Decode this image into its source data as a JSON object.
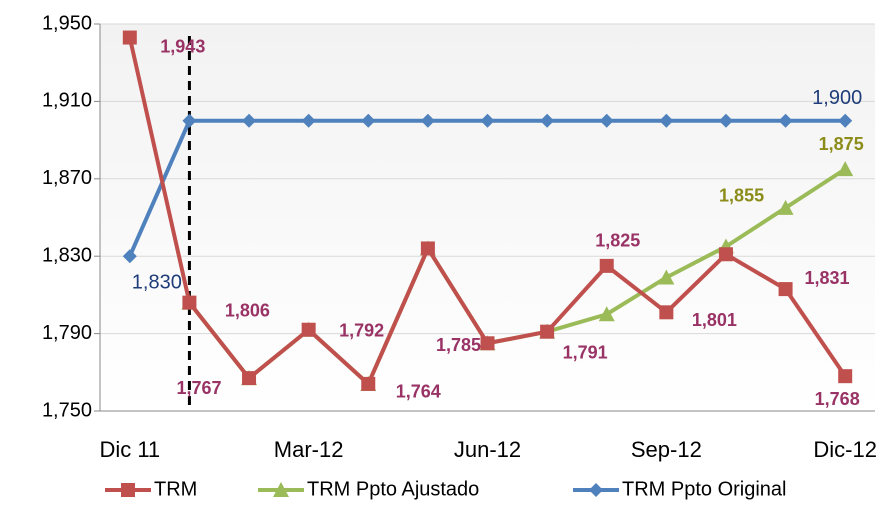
{
  "chart_data": {
    "type": "line",
    "categories": [
      "Dic 11",
      null,
      null,
      "Mar-12",
      null,
      null,
      "Jun-12",
      null,
      null,
      "Sep-12",
      null,
      null,
      "Dic-12"
    ],
    "ylim": [
      1750,
      1950
    ],
    "yticks": [
      {
        "value": 1750,
        "label": "1,750"
      },
      {
        "value": 1790,
        "label": "1,790"
      },
      {
        "value": 1830,
        "label": "1,830"
      },
      {
        "value": 1870,
        "label": "1,870"
      },
      {
        "value": 1910,
        "label": "1,910"
      },
      {
        "value": 1950,
        "label": "1,950"
      }
    ],
    "grid": true,
    "legend": "bottom",
    "series": [
      {
        "name": "TRM",
        "color": "#c0504d",
        "marker": "square",
        "label_color": "#993366",
        "values": [
          1943,
          1806,
          1767,
          1792,
          1764,
          1834,
          1785,
          1791,
          1825,
          1801,
          1831,
          1813,
          1768
        ],
        "value_labels": [
          "1,943",
          "1,806",
          "1,767",
          "1,792",
          "1,764",
          null,
          "1,785",
          "1,791",
          "1,825",
          "1,801",
          "1,831",
          null,
          "1,768"
        ]
      },
      {
        "name": "TRM Ppto Ajustado",
        "color": "#9bbb59",
        "marker": "triangle",
        "label_color": "#8c8c1a",
        "values": [
          null,
          1806,
          1767,
          1792,
          1764,
          1834,
          1785,
          1791,
          1800,
          1819,
          1835,
          1855,
          1875
        ],
        "value_labels": [
          null,
          null,
          null,
          null,
          null,
          null,
          null,
          null,
          null,
          null,
          null,
          "1,855",
          "1,875"
        ]
      },
      {
        "name": "TRM Ppto Original",
        "color": "#4f81bd",
        "marker": "diamond",
        "label_color": "#1f3d7a",
        "values": [
          1830,
          1900,
          1900,
          1900,
          1900,
          1900,
          1900,
          1900,
          1900,
          1900,
          1900,
          1900,
          1900
        ],
        "value_labels": [
          "1,830",
          null,
          null,
          null,
          null,
          null,
          null,
          null,
          null,
          null,
          null,
          null,
          "1,900"
        ]
      }
    ]
  }
}
